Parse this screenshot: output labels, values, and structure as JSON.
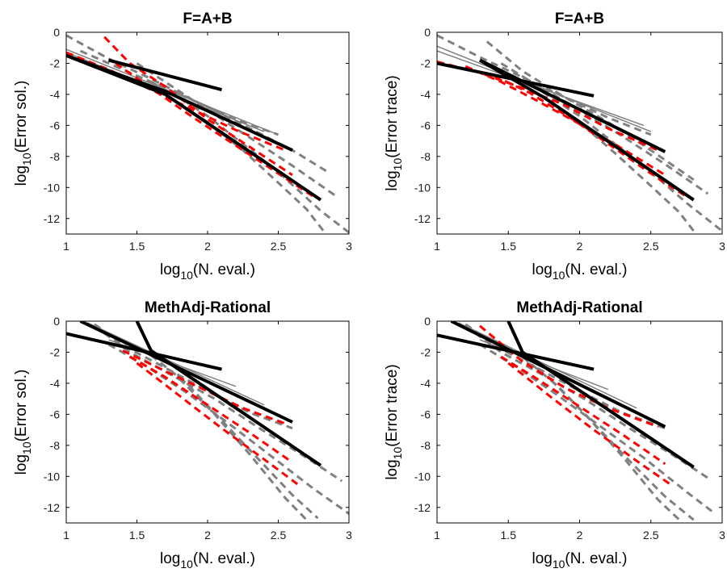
{
  "chart_data": [
    {
      "type": "line",
      "title": "F=A+B",
      "xlabel": {
        "prefix": "log",
        "sub": "10",
        "suffix": "(N. eval.)"
      },
      "ylabel": {
        "prefix": "log",
        "sub": "10",
        "suffix": "(Error sol.)"
      },
      "xlim": [
        1,
        3
      ],
      "ylim": [
        -13,
        0
      ],
      "xticks": [
        {
          "v": 1,
          "label": "1"
        },
        {
          "v": 1.5,
          "label": "1.5"
        },
        {
          "v": 2,
          "label": "2"
        },
        {
          "v": 2.5,
          "label": "2.5"
        },
        {
          "v": 3,
          "label": "3"
        }
      ],
      "yticks": [
        {
          "v": 0,
          "label": "0"
        },
        {
          "v": -2,
          "label": "-2"
        },
        {
          "v": -4,
          "label": "-4"
        },
        {
          "v": -6,
          "label": "-6"
        },
        {
          "v": -8,
          "label": "-8"
        },
        {
          "v": -10,
          "label": "-10"
        },
        {
          "v": -12,
          "label": "-12"
        }
      ],
      "grid": false,
      "series": [
        {
          "style": "gray-dash",
          "x": [
            1.0,
            1.3,
            1.6,
            1.9,
            2.2,
            2.5
          ],
          "y": [
            -0.2,
            -1.7,
            -3.0,
            -4.4,
            -5.6,
            -6.6
          ]
        },
        {
          "style": "gray-dash",
          "x": [
            1.1,
            1.4,
            1.7,
            2.0,
            2.3,
            2.6,
            2.85
          ],
          "y": [
            -1.2,
            -2.4,
            -3.6,
            -4.8,
            -6.2,
            -7.6,
            -9.0
          ]
        },
        {
          "style": "gray-dash",
          "x": [
            1.5,
            1.75,
            2.0,
            2.3,
            2.6,
            2.9
          ],
          "y": [
            -2.0,
            -3.5,
            -5.0,
            -6.8,
            -8.6,
            -10.5
          ]
        },
        {
          "style": "gray-dash",
          "x": [
            1.6,
            1.8,
            2.0,
            2.25,
            2.5,
            2.8,
            3.0
          ],
          "y": [
            -3.2,
            -4.2,
            -5.4,
            -7.2,
            -9.0,
            -11.5,
            -12.9
          ]
        },
        {
          "style": "gray-dash",
          "x": [
            1.75,
            2.0,
            2.25,
            2.5,
            2.7,
            2.82
          ],
          "y": [
            -4.3,
            -5.8,
            -7.6,
            -9.7,
            -11.4,
            -12.8
          ]
        },
        {
          "style": "gray-thin",
          "x": [
            1.0,
            2.5
          ],
          "y": [
            -1.1,
            -6.6
          ]
        },
        {
          "style": "gray-thin",
          "x": [
            1.0,
            2.4
          ],
          "y": [
            -1.3,
            -6.4
          ]
        },
        {
          "style": "red-dash",
          "x": [
            1.0,
            1.3,
            1.6,
            1.9,
            2.2,
            2.55
          ],
          "y": [
            -1.3,
            -2.4,
            -3.7,
            -5.0,
            -6.3,
            -7.6
          ]
        },
        {
          "style": "red-dash",
          "x": [
            1.27,
            1.45,
            1.7,
            2.0,
            2.3,
            2.6
          ],
          "y": [
            -0.3,
            -2.0,
            -3.5,
            -5.6,
            -7.4,
            -9.2
          ]
        },
        {
          "style": "red-dash",
          "x": [
            1.35,
            1.6,
            1.9,
            2.2,
            2.5,
            2.75
          ],
          "y": [
            -2.0,
            -3.6,
            -5.5,
            -7.3,
            -9.1,
            -10.6
          ]
        },
        {
          "style": "black-thick",
          "x": [
            1.3,
            2.1
          ],
          "y": [
            -1.8,
            -3.7
          ]
        },
        {
          "style": "black-thick",
          "x": [
            1.0,
            1.7,
            2.6
          ],
          "y": [
            -1.5,
            -3.8,
            -7.6
          ]
        },
        {
          "style": "black-thick",
          "x": [
            1.0,
            1.7,
            2.8
          ],
          "y": [
            -1.5,
            -4.0,
            -10.8
          ]
        }
      ]
    },
    {
      "type": "line",
      "title": "F=A+B",
      "xlabel": {
        "prefix": "log",
        "sub": "10",
        "suffix": "(N. eval.)"
      },
      "ylabel": {
        "prefix": "log",
        "sub": "10",
        "suffix": "(Error trace)"
      },
      "xlim": [
        1,
        3
      ],
      "ylim": [
        -13,
        0
      ],
      "xticks": [
        {
          "v": 1,
          "label": "1"
        },
        {
          "v": 1.5,
          "label": "1.5"
        },
        {
          "v": 2,
          "label": "2"
        },
        {
          "v": 2.5,
          "label": "2.5"
        },
        {
          "v": 3,
          "label": "3"
        }
      ],
      "yticks": [
        {
          "v": 0,
          "label": "0"
        },
        {
          "v": -2,
          "label": "-2"
        },
        {
          "v": -4,
          "label": "-4"
        },
        {
          "v": -6,
          "label": "-6"
        },
        {
          "v": -8,
          "label": "-8"
        },
        {
          "v": -10,
          "label": "-10"
        },
        {
          "v": -12,
          "label": "-12"
        }
      ],
      "grid": false,
      "series": [
        {
          "style": "gray-dash",
          "x": [
            1.0,
            1.3,
            1.6,
            1.9,
            2.2,
            2.5
          ],
          "y": [
            -0.2,
            -1.6,
            -2.9,
            -4.2,
            -5.5,
            -6.6
          ]
        },
        {
          "style": "gray-dash",
          "x": [
            1.35,
            1.6,
            1.9,
            2.2,
            2.5,
            2.8
          ],
          "y": [
            -0.6,
            -2.5,
            -4.2,
            -5.8,
            -7.6,
            -9.5
          ]
        },
        {
          "style": "gray-dash",
          "x": [
            1.45,
            1.7,
            2.0,
            2.3,
            2.6,
            2.9
          ],
          "y": [
            -2.0,
            -3.4,
            -5.0,
            -6.7,
            -8.5,
            -10.4
          ]
        },
        {
          "style": "gray-dash",
          "x": [
            1.6,
            1.8,
            2.0,
            2.25,
            2.5,
            2.75,
            3.0
          ],
          "y": [
            -3.0,
            -4.2,
            -5.4,
            -7.2,
            -9.0,
            -11.0,
            -12.8
          ]
        },
        {
          "style": "gray-dash",
          "x": [
            1.75,
            2.0,
            2.25,
            2.5,
            2.7,
            2.8
          ],
          "y": [
            -4.2,
            -5.8,
            -7.8,
            -9.9,
            -11.6,
            -12.8
          ]
        },
        {
          "style": "gray-thin",
          "x": [
            1.0,
            2.5
          ],
          "y": [
            -0.9,
            -6.4
          ]
        },
        {
          "style": "gray-thin",
          "x": [
            1.0,
            2.45
          ],
          "y": [
            -1.2,
            -6.0
          ]
        },
        {
          "style": "red-dash",
          "x": [
            1.0,
            1.3,
            1.6,
            1.9,
            2.2,
            2.55
          ],
          "y": [
            -1.9,
            -2.6,
            -3.6,
            -4.7,
            -6.2,
            -7.6
          ]
        },
        {
          "style": "red-dash",
          "x": [
            1.2,
            1.45,
            1.7,
            2.0,
            2.3,
            2.6
          ],
          "y": [
            -2.2,
            -3.2,
            -4.4,
            -5.9,
            -7.5,
            -9.2
          ]
        },
        {
          "style": "red-dash",
          "x": [
            1.4,
            1.65,
            1.95,
            2.25,
            2.5,
            2.75
          ],
          "y": [
            -2.8,
            -3.9,
            -5.6,
            -7.5,
            -9.1,
            -10.6
          ]
        },
        {
          "style": "black-thick",
          "x": [
            1.0,
            2.1
          ],
          "y": [
            -2.0,
            -4.1
          ]
        },
        {
          "style": "black-thick",
          "x": [
            1.3,
            2.6
          ],
          "y": [
            -1.8,
            -7.7
          ]
        },
        {
          "style": "black-thick",
          "x": [
            1.3,
            1.75,
            2.8
          ],
          "y": [
            -1.8,
            -4.2,
            -10.8
          ]
        }
      ]
    },
    {
      "type": "line",
      "title": "MethAdj-Rational",
      "xlabel": {
        "prefix": "log",
        "sub": "10",
        "suffix": "(N. eval.)"
      },
      "ylabel": {
        "prefix": "log",
        "sub": "10",
        "suffix": "(Error sol.)"
      },
      "xlim": [
        1,
        3
      ],
      "ylim": [
        -13,
        0
      ],
      "xticks": [
        {
          "v": 1,
          "label": "1"
        },
        {
          "v": 1.5,
          "label": "1.5"
        },
        {
          "v": 2,
          "label": "2"
        },
        {
          "v": 2.5,
          "label": "2.5"
        },
        {
          "v": 3,
          "label": "3"
        }
      ],
      "yticks": [
        {
          "v": 0,
          "label": "0"
        },
        {
          "v": -2,
          "label": "-2"
        },
        {
          "v": -4,
          "label": "-4"
        },
        {
          "v": -6,
          "label": "-6"
        },
        {
          "v": -8,
          "label": "-8"
        },
        {
          "v": -10,
          "label": "-10"
        },
        {
          "v": -12,
          "label": "-12"
        }
      ],
      "grid": false,
      "series": [
        {
          "style": "gray-dash",
          "x": [
            1.2,
            1.45,
            1.7,
            2.0,
            2.3,
            2.6
          ],
          "y": [
            -0.2,
            -1.8,
            -3.0,
            -4.5,
            -5.9,
            -6.9
          ]
        },
        {
          "style": "gray-dash",
          "x": [
            1.2,
            1.45,
            1.75,
            2.05,
            2.35,
            2.7,
            2.95
          ],
          "y": [
            -0.3,
            -2.0,
            -3.5,
            -5.0,
            -6.8,
            -8.8,
            -10.3
          ]
        },
        {
          "style": "gray-dash",
          "x": [
            1.3,
            1.55,
            1.85,
            2.15,
            2.45,
            2.75,
            3.0
          ],
          "y": [
            -1.5,
            -2.8,
            -4.6,
            -6.6,
            -8.7,
            -10.8,
            -12.4
          ]
        },
        {
          "style": "gray-dash",
          "x": [
            1.6,
            1.85,
            2.1,
            2.35,
            2.6,
            2.78
          ],
          "y": [
            -2.2,
            -4.0,
            -6.4,
            -8.8,
            -11.2,
            -12.7
          ]
        },
        {
          "style": "gray-dash",
          "x": [
            1.8,
            2.05,
            2.3,
            2.55,
            2.7
          ],
          "y": [
            -3.7,
            -6.0,
            -8.6,
            -11.4,
            -12.8
          ]
        },
        {
          "style": "gray-thin",
          "x": [
            1.15,
            2.4
          ],
          "y": [
            -0.1,
            -5.4
          ]
        },
        {
          "style": "gray-thin",
          "x": [
            1.3,
            2.2
          ],
          "y": [
            -1.2,
            -4.2
          ]
        },
        {
          "style": "red-dash",
          "x": [
            1.4,
            1.65,
            1.95,
            2.25,
            2.55
          ],
          "y": [
            -1.9,
            -3.0,
            -4.3,
            -5.6,
            -6.6
          ]
        },
        {
          "style": "red-dash",
          "x": [
            1.45,
            1.7,
            2.0,
            2.3,
            2.6
          ],
          "y": [
            -2.3,
            -3.6,
            -5.4,
            -7.2,
            -9.1
          ]
        },
        {
          "style": "red-dash",
          "x": [
            1.5,
            1.8,
            2.1,
            2.4,
            2.65
          ],
          "y": [
            -2.7,
            -4.8,
            -6.9,
            -8.9,
            -10.6
          ]
        },
        {
          "style": "black-thick",
          "x": [
            1.0,
            2.1
          ],
          "y": [
            -0.8,
            -3.1
          ]
        },
        {
          "style": "black-thick",
          "x": [
            1.1,
            2.6
          ],
          "y": [
            0.0,
            -6.5
          ]
        },
        {
          "style": "black-thick",
          "x": [
            1.5,
            1.6,
            2.8
          ],
          "y": [
            0.0,
            -1.9,
            -9.3
          ]
        }
      ]
    },
    {
      "type": "line",
      "title": "MethAdj-Rational",
      "xlabel": {
        "prefix": "log",
        "sub": "10",
        "suffix": "(N. eval.)"
      },
      "ylabel": {
        "prefix": "log",
        "sub": "10",
        "suffix": "(Error trace)"
      },
      "xlim": [
        1,
        3
      ],
      "ylim": [
        -13,
        0
      ],
      "xticks": [
        {
          "v": 1,
          "label": "1"
        },
        {
          "v": 1.5,
          "label": "1.5"
        },
        {
          "v": 2,
          "label": "2"
        },
        {
          "v": 2.5,
          "label": "2.5"
        },
        {
          "v": 3,
          "label": "3"
        }
      ],
      "yticks": [
        {
          "v": 0,
          "label": "0"
        },
        {
          "v": -2,
          "label": "-2"
        },
        {
          "v": -4,
          "label": "-4"
        },
        {
          "v": -6,
          "label": "-6"
        },
        {
          "v": -8,
          "label": "-8"
        },
        {
          "v": -10,
          "label": "-10"
        },
        {
          "v": -12,
          "label": "-12"
        }
      ],
      "grid": false,
      "series": [
        {
          "style": "gray-dash",
          "x": [
            1.2,
            1.45,
            1.7,
            2.0,
            2.3,
            2.6
          ],
          "y": [
            -0.2,
            -1.8,
            -3.0,
            -4.5,
            -5.9,
            -6.9
          ]
        },
        {
          "style": "gray-dash",
          "x": [
            1.2,
            1.45,
            1.75,
            2.05,
            2.35,
            2.65,
            2.9
          ],
          "y": [
            -0.3,
            -2.0,
            -3.5,
            -5.1,
            -6.9,
            -8.6,
            -10.1
          ]
        },
        {
          "style": "gray-dash",
          "x": [
            1.3,
            1.55,
            1.85,
            2.15,
            2.45,
            2.75,
            2.95
          ],
          "y": [
            -1.5,
            -2.9,
            -4.8,
            -6.8,
            -8.8,
            -11.0,
            -12.4
          ]
        },
        {
          "style": "gray-dash",
          "x": [
            1.6,
            1.85,
            2.1,
            2.35,
            2.6,
            2.8
          ],
          "y": [
            -2.3,
            -4.2,
            -6.6,
            -9.0,
            -11.3,
            -12.8
          ]
        },
        {
          "style": "gray-dash",
          "x": [
            1.8,
            2.05,
            2.3,
            2.55,
            2.7
          ],
          "y": [
            -3.8,
            -6.1,
            -8.7,
            -11.5,
            -12.8
          ]
        },
        {
          "style": "gray-thin",
          "x": [
            1.15,
            2.4
          ],
          "y": [
            -0.1,
            -5.6
          ]
        },
        {
          "style": "gray-thin",
          "x": [
            1.3,
            2.2
          ],
          "y": [
            -1.2,
            -4.4
          ]
        },
        {
          "style": "red-dash",
          "x": [
            1.3,
            1.6,
            1.9,
            2.2,
            2.55
          ],
          "y": [
            -0.3,
            -2.6,
            -4.3,
            -5.6,
            -6.8
          ]
        },
        {
          "style": "red-dash",
          "x": [
            1.45,
            1.7,
            2.0,
            2.3,
            2.6
          ],
          "y": [
            -2.3,
            -3.7,
            -5.5,
            -7.3,
            -9.2
          ]
        },
        {
          "style": "red-dash",
          "x": [
            1.5,
            1.8,
            2.1,
            2.4,
            2.65
          ],
          "y": [
            -2.7,
            -4.9,
            -7.0,
            -9.0,
            -10.6
          ]
        },
        {
          "style": "black-thick",
          "x": [
            1.0,
            2.1
          ],
          "y": [
            -0.9,
            -3.1
          ]
        },
        {
          "style": "black-thick",
          "x": [
            1.1,
            2.6
          ],
          "y": [
            0.0,
            -6.8
          ]
        },
        {
          "style": "black-thick",
          "x": [
            1.5,
            1.6,
            2.8
          ],
          "y": [
            0.0,
            -2.0,
            -9.4
          ]
        }
      ]
    }
  ],
  "colors": {
    "axis": "#000000",
    "gray_line": "#808080",
    "red_line": "#ff0000",
    "black_line": "#000000"
  }
}
